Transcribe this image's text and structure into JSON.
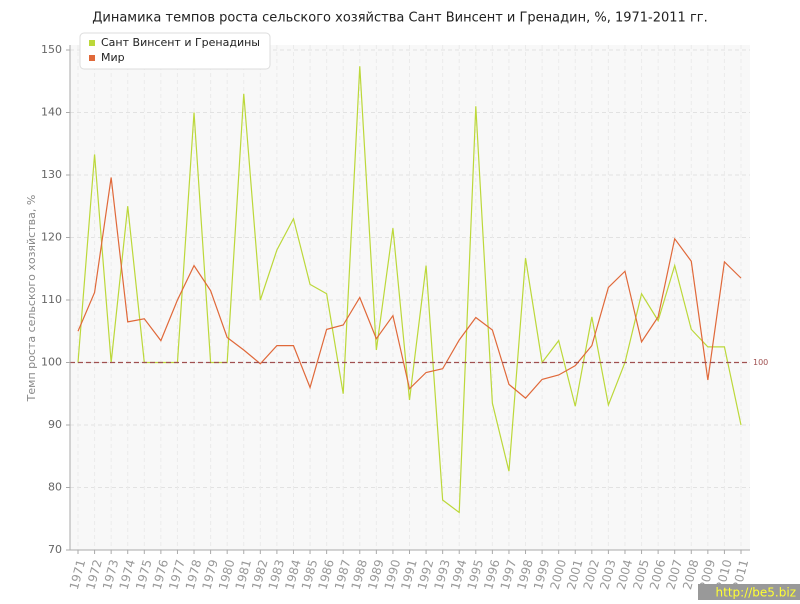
{
  "chart_data": {
    "type": "line",
    "title": "Динамика темпов роста сельского хозяйства Сант Винсент и Гренадин, %, 1971-2011 гг.",
    "y_label": "Темп роста сельского хозяйства, %",
    "categories": [
      "1971",
      "1972",
      "1973",
      "1974",
      "1975",
      "1976",
      "1977",
      "1978",
      "1979",
      "1980",
      "1981",
      "1982",
      "1983",
      "1984",
      "1985",
      "1986",
      "1987",
      "1988",
      "1989",
      "1990",
      "1991",
      "1992",
      "1993",
      "1994",
      "1995",
      "1996",
      "1997",
      "1998",
      "1999",
      "2000",
      "2001",
      "2002",
      "2003",
      "2004",
      "2005",
      "2006",
      "2007",
      "2008",
      "2009",
      "2010",
      "2011"
    ],
    "series": [
      {
        "name": "Сант Винсент и Гренадины",
        "color": "#bcd83a",
        "values": [
          100,
          133.3,
          100,
          125,
          100,
          100,
          100,
          140,
          100,
          100,
          143,
          110,
          118,
          123,
          112.5,
          111,
          95,
          147.4,
          102,
          121.5,
          94,
          115.5,
          78,
          76,
          141,
          93.5,
          82.6,
          116.7,
          100,
          103.5,
          93,
          107.3,
          93.2,
          100,
          111,
          106.7,
          115.5,
          105.3,
          102.5,
          102.5,
          90
        ]
      },
      {
        "name": "Мир",
        "color": "#e0693a",
        "values": [
          105,
          111.2,
          129.6,
          106.5,
          107,
          103.5,
          110,
          115.5,
          111.5,
          104,
          102,
          99.8,
          102.7,
          102.7,
          96,
          105.3,
          106,
          110.4,
          103.8,
          107.5,
          95.8,
          98.4,
          99,
          103.6,
          107.2,
          105.2,
          96.5,
          94.3,
          97.3,
          98,
          99.5,
          102.7,
          112,
          114.6,
          103.3,
          107.3,
          119.8,
          116.2,
          97.2,
          116.1,
          113.5
        ]
      }
    ],
    "reference_line": 100,
    "ylim": [
      70,
      150
    ],
    "yticks": [
      70,
      80,
      90,
      100,
      110,
      120,
      130,
      140,
      150
    ],
    "grid": true,
    "legend": "top-left",
    "watermark": "http://be5.biz"
  }
}
